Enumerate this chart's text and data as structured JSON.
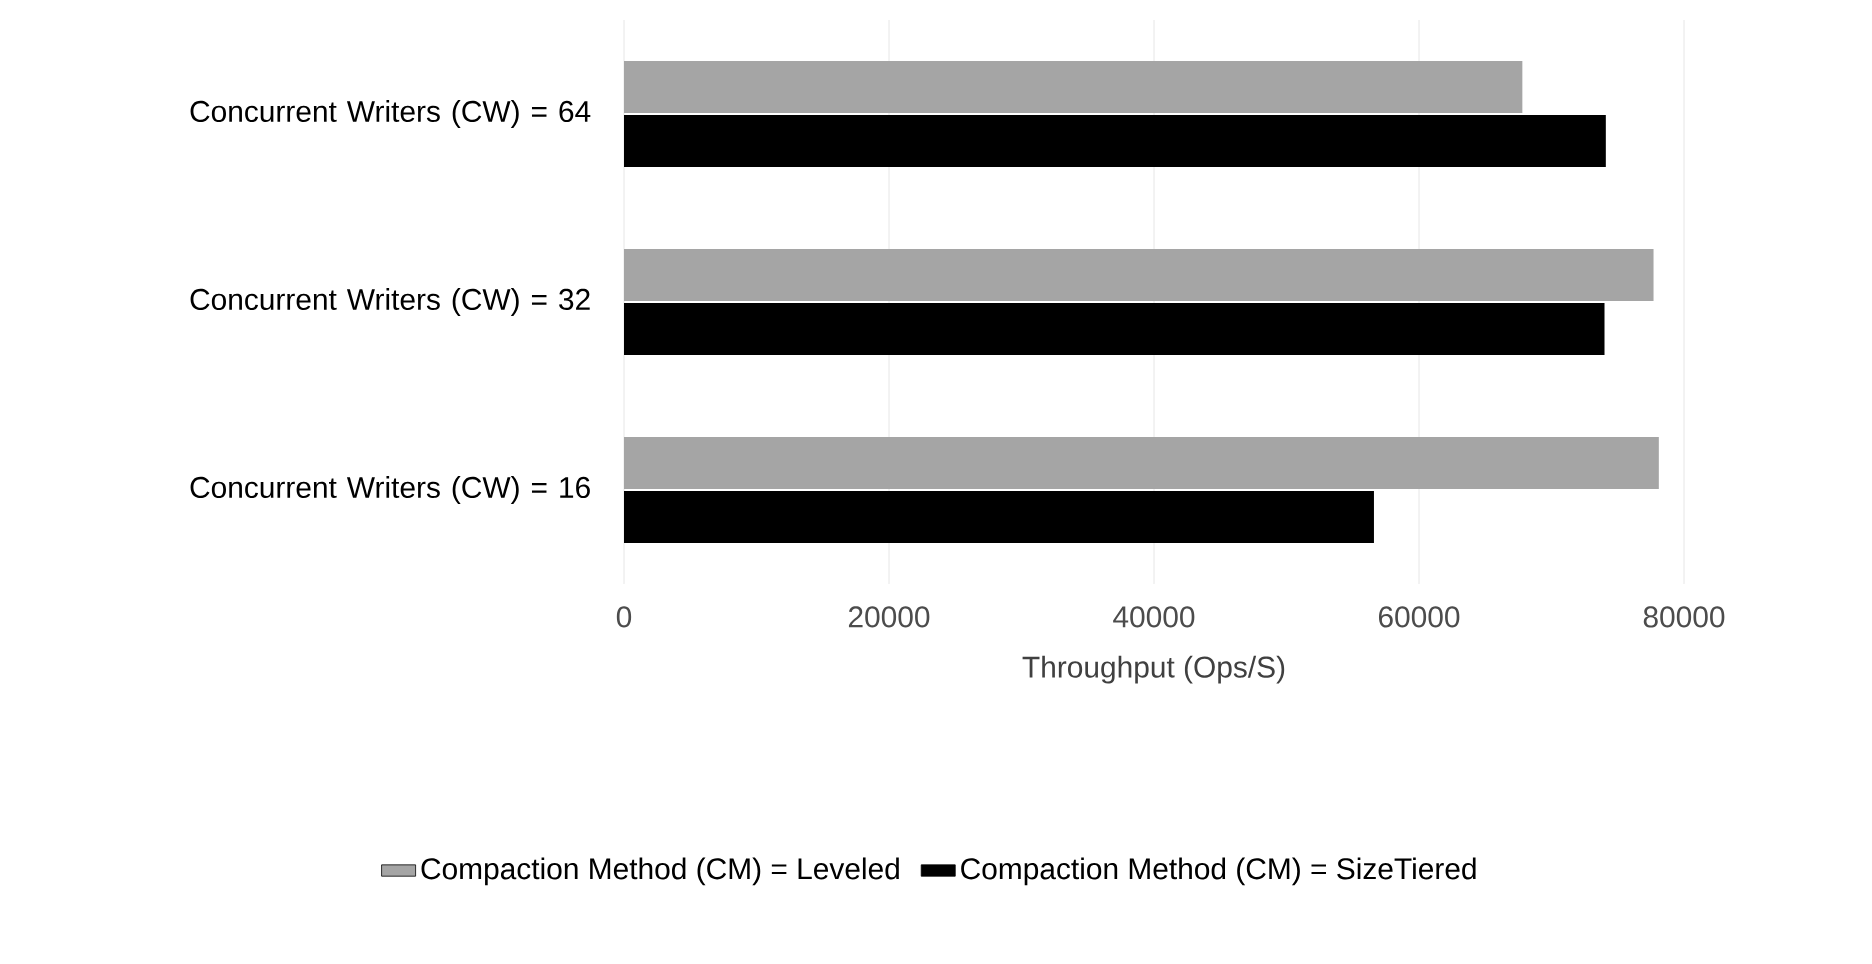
{
  "chart_data": {
    "type": "bar",
    "orientation": "horizontal",
    "xlabel": "Throughput (Ops/S)",
    "categories": [
      "Concurrent Writers (CW) = 64",
      "Concurrent Writers (CW) = 32",
      "Concurrent Writers (CW) = 16"
    ],
    "series": [
      {
        "name": "Compaction Method (CM) = Leveled",
        "color": "#a5a5a5",
        "values": [
          67800,
          77700,
          78100
        ]
      },
      {
        "name": "Compaction Method (CM) = SizeTiered",
        "color": "#000000",
        "values": [
          74100,
          74000,
          56600
        ]
      }
    ],
    "xlim": [
      0,
      80000
    ],
    "xticks": [
      0,
      20000,
      40000,
      60000,
      80000
    ],
    "grid": "x",
    "legend": "bottom"
  }
}
